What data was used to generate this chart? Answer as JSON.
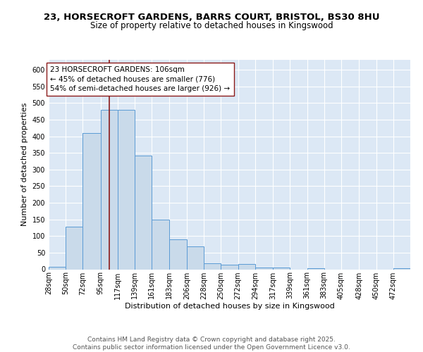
{
  "title_line1": "23, HORSECROFT GARDENS, BARRS COURT, BRISTOL, BS30 8HU",
  "title_line2": "Size of property relative to detached houses in Kingswood",
  "xlabel": "Distribution of detached houses by size in Kingswood",
  "ylabel": "Number of detached properties",
  "bin_labels": [
    "28sqm",
    "50sqm",
    "72sqm",
    "95sqm",
    "117sqm",
    "139sqm",
    "161sqm",
    "183sqm",
    "206sqm",
    "228sqm",
    "250sqm",
    "272sqm",
    "294sqm",
    "317sqm",
    "339sqm",
    "361sqm",
    "383sqm",
    "405sqm",
    "428sqm",
    "450sqm",
    "472sqm"
  ],
  "bin_edges": [
    28,
    50,
    72,
    95,
    117,
    139,
    161,
    183,
    206,
    228,
    250,
    272,
    294,
    317,
    339,
    361,
    383,
    405,
    428,
    450,
    472,
    494
  ],
  "counts": [
    8,
    128,
    410,
    480,
    480,
    343,
    149,
    90,
    68,
    18,
    13,
    15,
    6,
    5,
    0,
    3,
    0,
    0,
    0,
    0,
    3
  ],
  "bar_facecolor": "#c9daea",
  "bar_edgecolor": "#5b9bd5",
  "vline_x": 106,
  "vline_color": "#8b1a1a",
  "annotation_text": "23 HORSECROFT GARDENS: 106sqm\n← 45% of detached houses are smaller (776)\n54% of semi-detached houses are larger (926) →",
  "annotation_box_facecolor": "#ffffff",
  "annotation_box_edgecolor": "#8b1a1a",
  "ylim": [
    0,
    630
  ],
  "yticks": [
    0,
    50,
    100,
    150,
    200,
    250,
    300,
    350,
    400,
    450,
    500,
    550,
    600
  ],
  "background_color": "#dce8f5",
  "grid_color": "#ffffff",
  "footer_text": "Contains HM Land Registry data © Crown copyright and database right 2025.\nContains public sector information licensed under the Open Government Licence v3.0.",
  "title_fontsize": 9.5,
  "subtitle_fontsize": 8.5,
  "axis_label_fontsize": 8,
  "tick_fontsize": 7,
  "annotation_fontsize": 7.5,
  "footer_fontsize": 6.5
}
